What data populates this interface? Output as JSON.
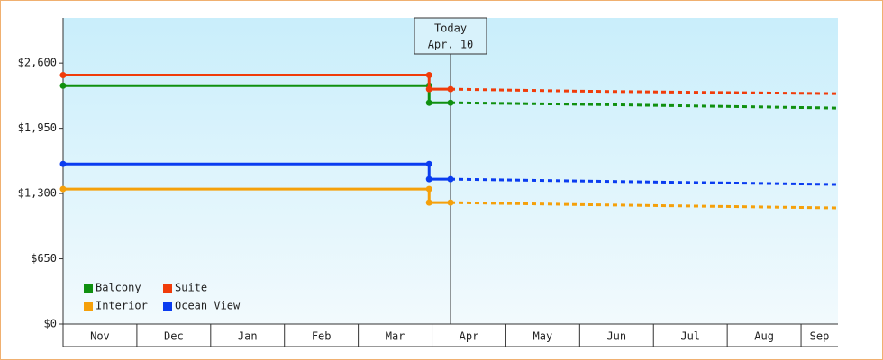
{
  "chart_data": {
    "type": "line",
    "categories": [
      "Nov",
      "Dec",
      "Jan",
      "Feb",
      "Mar",
      "Apr",
      "May",
      "Jun",
      "Jul",
      "Aug",
      "Sep"
    ],
    "x": [
      0,
      4.96,
      4.96,
      5.25,
      7,
      10.5
    ],
    "xlim": [
      0,
      10.5
    ],
    "ylim": [
      0,
      3050
    ],
    "yticks": [
      {
        "value": 0,
        "label": "$0"
      },
      {
        "value": 650,
        "label": "$650"
      },
      {
        "value": 1300,
        "label": "$1,300"
      },
      {
        "value": 1950,
        "label": "$1,950"
      },
      {
        "value": 2600,
        "label": "$2,600"
      }
    ],
    "today": {
      "x": 5.25,
      "label": "Today",
      "date": "Apr. 10"
    },
    "series": [
      {
        "name": "Balcony",
        "color": "#109010",
        "values": [
          2375,
          2375,
          2205,
          2205,
          null,
          null
        ],
        "forecast": [
          null,
          null,
          null,
          2205,
          2190,
          2152
        ]
      },
      {
        "name": "Suite",
        "color": "#f03c0a",
        "values": [
          2480,
          2480,
          2340,
          2340,
          null,
          null
        ],
        "forecast": [
          null,
          null,
          null,
          2340,
          2320,
          2295
        ]
      },
      {
        "name": "Interior",
        "color": "#f5a00a",
        "values": [
          1345,
          1345,
          1210,
          1210,
          null,
          null
        ],
        "forecast": [
          null,
          null,
          null,
          1210,
          1190,
          1157
        ]
      },
      {
        "name": "Ocean View",
        "color": "#0a3cf0",
        "values": [
          1595,
          1595,
          1443,
          1443,
          null,
          null
        ],
        "forecast": [
          null,
          null,
          null,
          1443,
          1425,
          1390
        ]
      }
    ]
  }
}
